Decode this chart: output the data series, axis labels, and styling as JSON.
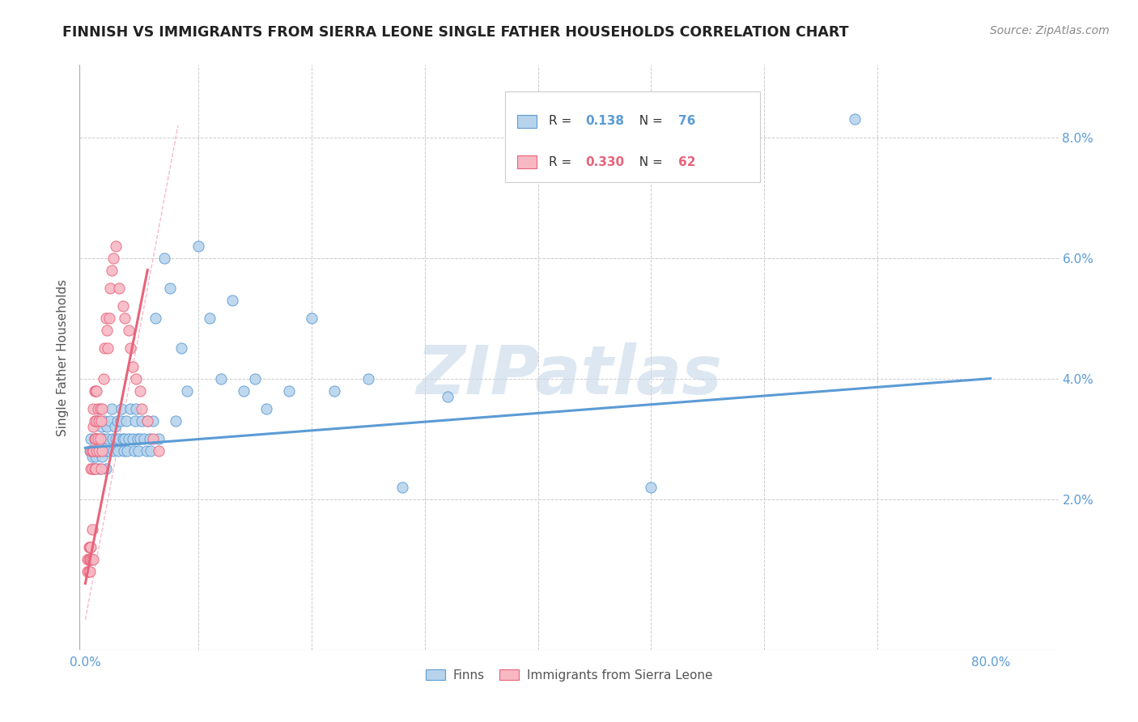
{
  "title": "FINNISH VS IMMIGRANTS FROM SIERRA LEONE SINGLE FATHER HOUSEHOLDS CORRELATION CHART",
  "source": "Source: ZipAtlas.com",
  "ylabel": "Single Father Households",
  "watermark": "ZIPatlas",
  "xlim": [
    -0.005,
    0.86
  ],
  "ylim": [
    -0.005,
    0.092
  ],
  "ytick_positions": [
    0.02,
    0.04,
    0.06,
    0.08
  ],
  "ytick_labels": [
    "2.0%",
    "4.0%",
    "6.0%",
    "8.0%"
  ],
  "xtick_positions": [
    0.0,
    0.8
  ],
  "xtick_labels": [
    "0.0%",
    "80.0%"
  ],
  "blue_scatter_x": [
    0.004,
    0.005,
    0.006,
    0.007,
    0.008,
    0.008,
    0.009,
    0.01,
    0.01,
    0.011,
    0.012,
    0.013,
    0.014,
    0.015,
    0.015,
    0.016,
    0.017,
    0.018,
    0.018,
    0.019,
    0.02,
    0.021,
    0.022,
    0.023,
    0.024,
    0.025,
    0.026,
    0.027,
    0.028,
    0.029,
    0.03,
    0.031,
    0.032,
    0.033,
    0.034,
    0.035,
    0.036,
    0.037,
    0.038,
    0.04,
    0.042,
    0.043,
    0.044,
    0.045,
    0.046,
    0.047,
    0.048,
    0.05,
    0.052,
    0.054,
    0.055,
    0.057,
    0.058,
    0.06,
    0.062,
    0.065,
    0.07,
    0.075,
    0.08,
    0.085,
    0.09,
    0.1,
    0.11,
    0.12,
    0.13,
    0.14,
    0.15,
    0.16,
    0.18,
    0.2,
    0.22,
    0.25,
    0.28,
    0.32,
    0.5,
    0.68
  ],
  "blue_scatter_y": [
    0.028,
    0.03,
    0.027,
    0.025,
    0.028,
    0.03,
    0.027,
    0.03,
    0.033,
    0.028,
    0.025,
    0.028,
    0.032,
    0.027,
    0.03,
    0.03,
    0.033,
    0.028,
    0.025,
    0.032,
    0.03,
    0.028,
    0.033,
    0.035,
    0.03,
    0.028,
    0.032,
    0.03,
    0.033,
    0.028,
    0.03,
    0.033,
    0.035,
    0.03,
    0.028,
    0.03,
    0.033,
    0.028,
    0.03,
    0.035,
    0.03,
    0.028,
    0.033,
    0.035,
    0.03,
    0.028,
    0.03,
    0.033,
    0.03,
    0.028,
    0.033,
    0.03,
    0.028,
    0.033,
    0.05,
    0.03,
    0.06,
    0.055,
    0.033,
    0.045,
    0.038,
    0.062,
    0.05,
    0.04,
    0.053,
    0.038,
    0.04,
    0.035,
    0.038,
    0.05,
    0.038,
    0.04,
    0.022,
    0.037,
    0.022,
    0.083
  ],
  "pink_scatter_x": [
    0.002,
    0.002,
    0.003,
    0.003,
    0.003,
    0.004,
    0.004,
    0.004,
    0.005,
    0.005,
    0.005,
    0.005,
    0.006,
    0.006,
    0.006,
    0.006,
    0.007,
    0.007,
    0.007,
    0.007,
    0.008,
    0.008,
    0.008,
    0.008,
    0.009,
    0.009,
    0.009,
    0.01,
    0.01,
    0.01,
    0.011,
    0.011,
    0.012,
    0.012,
    0.013,
    0.013,
    0.014,
    0.014,
    0.015,
    0.015,
    0.016,
    0.017,
    0.018,
    0.019,
    0.02,
    0.021,
    0.022,
    0.023,
    0.025,
    0.027,
    0.03,
    0.033,
    0.035,
    0.038,
    0.04,
    0.042,
    0.045,
    0.048,
    0.05,
    0.055,
    0.06,
    0.065
  ],
  "pink_scatter_y": [
    0.01,
    0.008,
    0.01,
    0.008,
    0.012,
    0.008,
    0.01,
    0.012,
    0.01,
    0.012,
    0.025,
    0.028,
    0.01,
    0.015,
    0.025,
    0.028,
    0.01,
    0.028,
    0.032,
    0.035,
    0.025,
    0.03,
    0.033,
    0.038,
    0.025,
    0.03,
    0.038,
    0.028,
    0.033,
    0.038,
    0.03,
    0.035,
    0.028,
    0.033,
    0.03,
    0.035,
    0.025,
    0.033,
    0.028,
    0.035,
    0.04,
    0.045,
    0.05,
    0.048,
    0.045,
    0.05,
    0.055,
    0.058,
    0.06,
    0.062,
    0.055,
    0.052,
    0.05,
    0.048,
    0.045,
    0.042,
    0.04,
    0.038,
    0.035,
    0.033,
    0.03,
    0.028
  ],
  "blue_line_x": [
    0.0,
    0.8
  ],
  "blue_line_y": [
    0.0285,
    0.04
  ],
  "pink_line_x": [
    0.0,
    0.055
  ],
  "pink_line_y": [
    0.006,
    0.058
  ],
  "ref_line_x": [
    0.0,
    0.082
  ],
  "ref_line_y": [
    0.0,
    0.082
  ],
  "blue_color": "#5b9bd5",
  "pink_color": "#e8637a",
  "blue_scatter_face": "#b8d4ed",
  "pink_scatter_face": "#f7b8c4",
  "title_fontsize": 12.5,
  "source_fontsize": 10,
  "ylabel_fontsize": 11,
  "tick_fontsize": 11,
  "axis_label_color": "#5b9bd5",
  "grid_color": "#cccccc",
  "watermark_color": "#c5d8ea",
  "background_color": "#ffffff",
  "legend_R1": "0.138",
  "legend_N1": "76",
  "legend_R2": "0.330",
  "legend_N2": "62",
  "legend_label1": "Finns",
  "legend_label2": "Immigrants from Sierra Leone"
}
